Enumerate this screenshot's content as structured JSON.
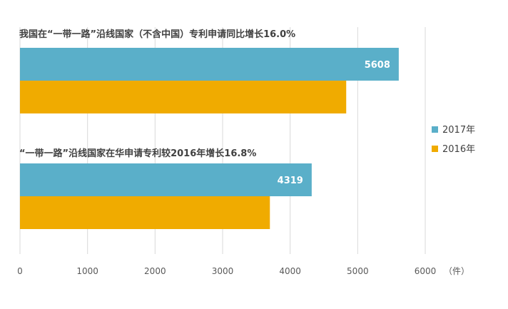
{
  "chart_data": {
    "type": "bar",
    "orientation": "horizontal",
    "categories": [
      "我国在“一带一路”沿线国家（不含中国）专利申请同比增长16.0%",
      "“一带一路”沿线国家在华申请专利较2016年增长16.8%"
    ],
    "series": [
      {
        "name": "2017年",
        "color": "#5aafc9",
        "values": [
          5608,
          4319
        ],
        "labels": [
          "5608",
          "4319"
        ]
      },
      {
        "name": "2016年",
        "color": "#f0ab00",
        "values": [
          4830,
          3700
        ],
        "labels": [
          "",
          ""
        ]
      }
    ],
    "xlim": [
      0,
      6000
    ],
    "ticks": [
      "0",
      "1000",
      "2000",
      "3000",
      "4000",
      "5000",
      "6000"
    ],
    "unit": "（件）",
    "grid": true,
    "legend_position": "right"
  }
}
